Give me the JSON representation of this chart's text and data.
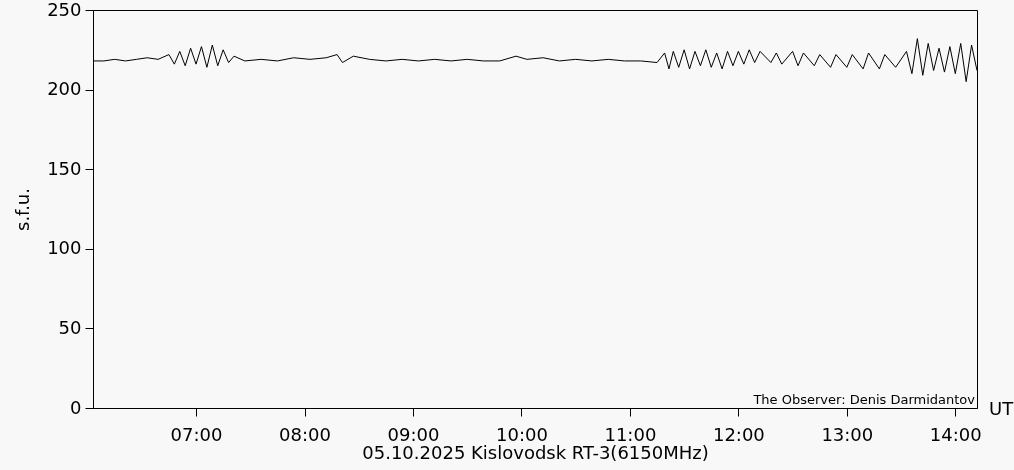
{
  "chart_data": {
    "type": "line",
    "xlabel": "05.10.2025 Kislovodsk RT-3(6150MHz)",
    "ylabel": "s.f.u.",
    "annotations": [
      "The Observer: Denis Darmidantov",
      "UT"
    ],
    "xlim": [
      6.05,
      14.2
    ],
    "ylim": [
      0,
      250
    ],
    "xticks": [
      {
        "value": 7,
        "label": "07:00"
      },
      {
        "value": 8,
        "label": "08:00"
      },
      {
        "value": 9,
        "label": "09:00"
      },
      {
        "value": 10,
        "label": "10:00"
      },
      {
        "value": 11,
        "label": "11:00"
      },
      {
        "value": 12,
        "label": "12:00"
      },
      {
        "value": 13,
        "label": "13:00"
      },
      {
        "value": 14,
        "label": "14:00"
      }
    ],
    "yticks": [
      0,
      50,
      100,
      150,
      200,
      250
    ],
    "grid": false,
    "marker": "none",
    "line_style": "solid",
    "series": [
      {
        "color": "#000000",
        "x": [
          6.05,
          6.15,
          6.25,
          6.35,
          6.45,
          6.55,
          6.65,
          6.75,
          6.8,
          6.85,
          6.9,
          6.95,
          7.0,
          7.05,
          7.1,
          7.15,
          7.2,
          7.25,
          7.3,
          7.35,
          7.45,
          7.6,
          7.75,
          7.9,
          8.05,
          8.2,
          8.3,
          8.35,
          8.45,
          8.6,
          8.75,
          8.9,
          9.05,
          9.2,
          9.35,
          9.5,
          9.65,
          9.8,
          9.95,
          10.05,
          10.2,
          10.35,
          10.5,
          10.65,
          10.8,
          10.95,
          11.1,
          11.25,
          11.32,
          11.36,
          11.4,
          11.45,
          11.5,
          11.55,
          11.6,
          11.65,
          11.7,
          11.75,
          11.8,
          11.85,
          11.9,
          11.95,
          12.0,
          12.05,
          12.1,
          12.15,
          12.2,
          12.3,
          12.35,
          12.4,
          12.5,
          12.55,
          12.6,
          12.7,
          12.75,
          12.85,
          12.9,
          13.0,
          13.05,
          13.15,
          13.2,
          13.3,
          13.35,
          13.45,
          13.55,
          13.6,
          13.65,
          13.7,
          13.75,
          13.8,
          13.85,
          13.9,
          13.95,
          14.0,
          14.05,
          14.1,
          14.15,
          14.2
        ],
        "values": [
          218,
          218,
          219,
          218,
          219,
          220,
          219,
          222,
          216,
          224,
          215,
          226,
          216,
          227,
          214,
          228,
          215,
          225,
          217,
          221,
          218,
          219,
          218,
          220,
          219,
          220,
          222,
          217,
          221,
          219,
          218,
          219,
          218,
          219,
          218,
          219,
          218,
          218,
          221,
          219,
          220,
          218,
          219,
          218,
          219,
          218,
          218,
          217,
          223,
          213,
          224,
          214,
          225,
          213,
          224,
          215,
          225,
          214,
          223,
          213,
          224,
          215,
          224,
          216,
          225,
          217,
          224,
          217,
          223,
          216,
          224,
          215,
          223,
          215,
          222,
          214,
          222,
          214,
          222,
          213,
          223,
          213,
          222,
          214,
          224,
          210,
          232,
          209,
          229,
          212,
          226,
          211,
          227,
          210,
          229,
          205,
          228,
          212
        ]
      }
    ]
  }
}
